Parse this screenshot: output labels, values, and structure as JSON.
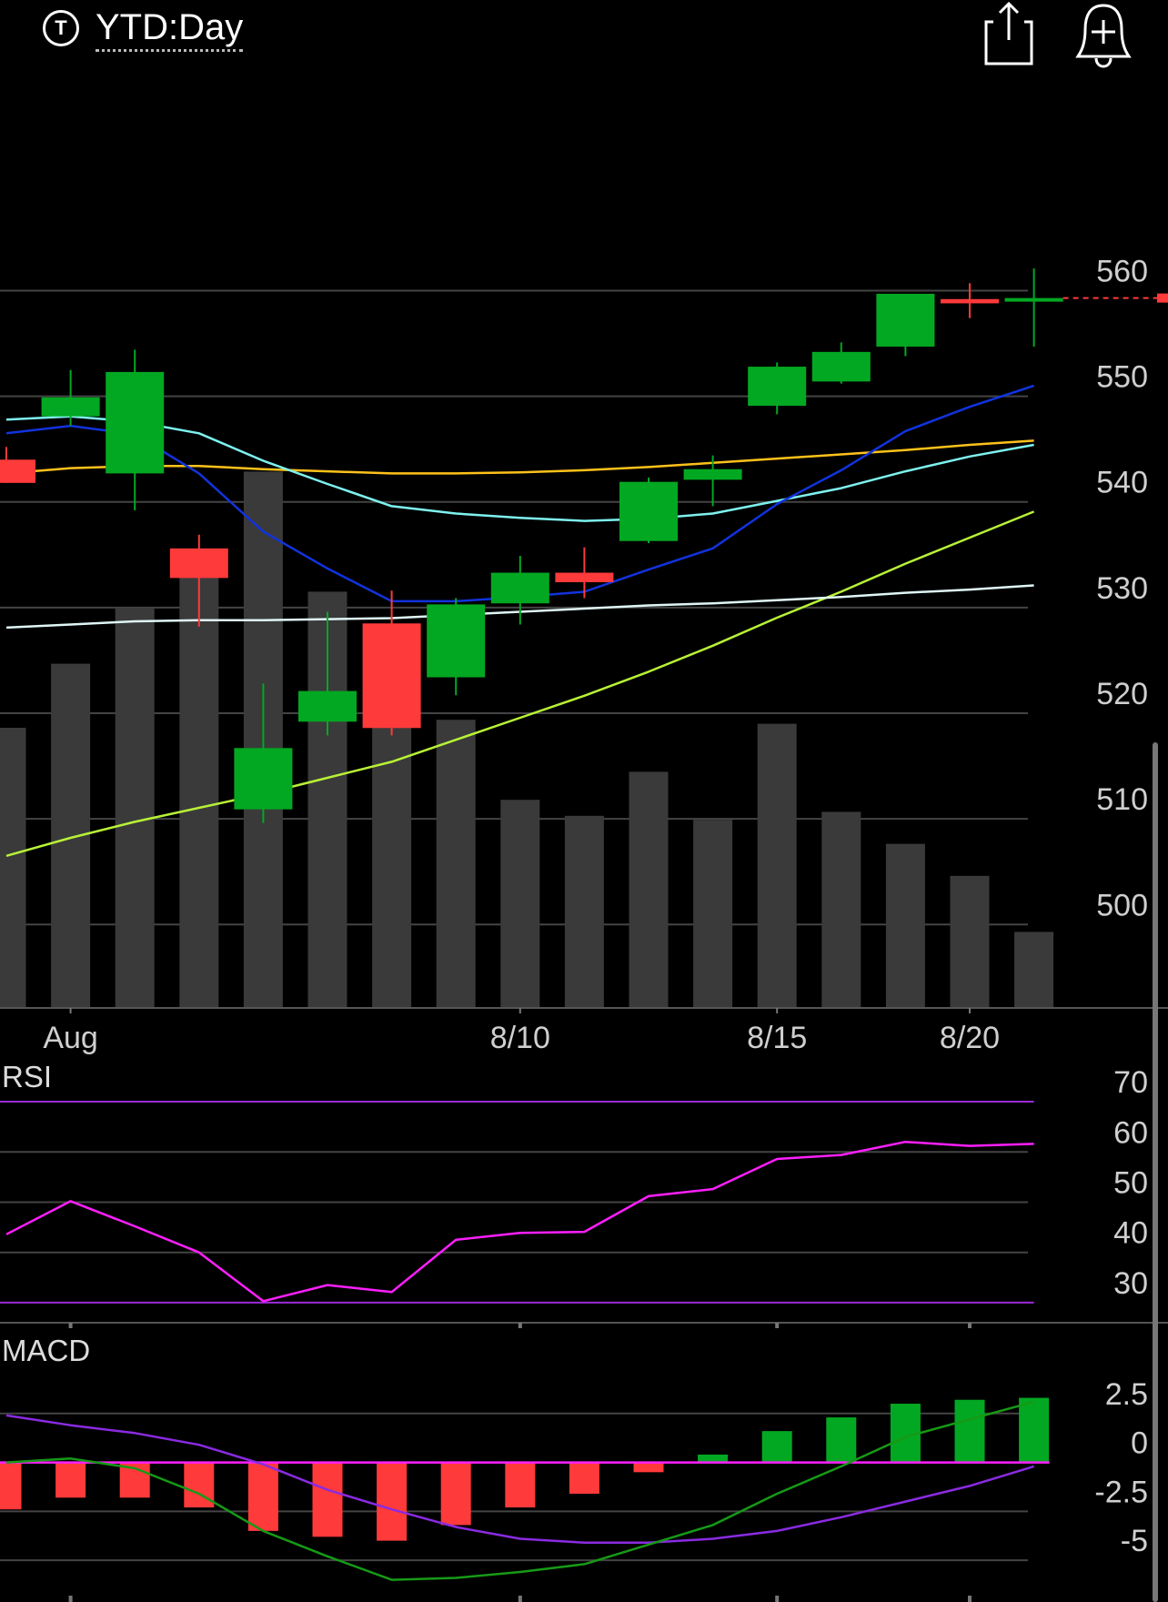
{
  "header": {
    "ticker_icon_letter": "T",
    "range_label": "YTD:Day"
  },
  "icons": {
    "share": "share-icon",
    "alert": "add-alert-bell-icon",
    "ticker": "ticker-type-icon"
  },
  "colors": {
    "up": "#03a822",
    "down": "#ff3a3a",
    "volume": "#3a3a3a",
    "ma_short": "#1133dd",
    "ma_mid": "#7ef2ef",
    "ma_long": "#ffc21a",
    "ma_longest": "#dff6f5",
    "volume_ma": "#b8f236",
    "rsi": "#ff1fff",
    "rsi_bands": "#9b2bd6",
    "macd_line": "#169a16",
    "macd_signal": "#8a2be2",
    "macd_zero": "#ff1fff",
    "grid": "#444444"
  },
  "chart_data": [
    {
      "type": "candlestick",
      "title": "",
      "x_ticks": [
        {
          "label": "Aug",
          "index": 1
        },
        {
          "label": "8/10",
          "index": 8
        },
        {
          "label": "8/15",
          "index": 12
        },
        {
          "label": "8/20",
          "index": 15
        }
      ],
      "y_ticks": [
        560,
        550,
        540,
        530,
        520,
        510,
        500
      ],
      "ylim": [
        492.1,
        578.9
      ],
      "candles": [
        {
          "open": 544.0,
          "close": 541.8,
          "high": 545.2,
          "low": 541.8
        },
        {
          "open": 548.1,
          "close": 549.9,
          "high": 552.5,
          "low": 547.2
        },
        {
          "open": 542.7,
          "close": 552.3,
          "high": 554.4,
          "low": 539.2
        },
        {
          "open": 535.6,
          "close": 532.8,
          "high": 536.9,
          "low": 528.2
        },
        {
          "open": 510.9,
          "close": 516.7,
          "high": 522.8,
          "low": 509.6
        },
        {
          "open": 519.2,
          "close": 522.1,
          "high": 529.6,
          "low": 517.9
        },
        {
          "open": 528.5,
          "close": 518.6,
          "high": 531.6,
          "low": 517.9
        },
        {
          "open": 523.4,
          "close": 530.3,
          "high": 530.9,
          "low": 521.7
        },
        {
          "open": 530.4,
          "close": 533.3,
          "high": 534.9,
          "low": 528.4
        },
        {
          "open": 533.3,
          "close": 532.4,
          "high": 535.7,
          "low": 530.9
        },
        {
          "open": 536.3,
          "close": 541.9,
          "high": 542.3,
          "low": 536.1
        },
        {
          "open": 542.1,
          "close": 543.1,
          "high": 544.4,
          "low": 539.6
        },
        {
          "open": 549.1,
          "close": 552.8,
          "high": 553.2,
          "low": 548.3
        },
        {
          "open": 551.4,
          "close": 554.2,
          "high": 555.1,
          "low": 551.2
        },
        {
          "open": 554.7,
          "close": 559.7,
          "high": 559.7,
          "low": 553.8
        },
        {
          "open": 559.2,
          "close": 558.8,
          "high": 560.7,
          "low": 557.4
        },
        {
          "open": 559.3,
          "close": 559.3,
          "high": 562.1,
          "low": 554.7
        }
      ],
      "last_price": 559.3,
      "volume": [
        0.7,
        0.86,
        1.0,
        1.09,
        1.34,
        1.04,
        0.87,
        0.72,
        0.52,
        0.48,
        0.59,
        0.47,
        0.71,
        0.49,
        0.41,
        0.33,
        0.19
      ],
      "volume_ma": [
        0.38,
        0.425,
        0.465,
        0.5,
        0.535,
        0.575,
        0.615,
        0.67,
        0.725,
        0.78,
        0.84,
        0.905,
        0.975,
        1.04,
        1.11,
        1.175,
        1.24
      ],
      "ma_short": [
        546.5,
        547.2,
        546.4,
        542.7,
        537.2,
        533.7,
        530.6,
        530.6,
        531.0,
        531.5,
        533.6,
        535.6,
        539.8,
        543.0,
        546.7,
        549.0,
        551.0
      ],
      "ma_mid": [
        547.8,
        548.1,
        547.6,
        546.5,
        543.9,
        541.7,
        539.6,
        538.9,
        538.5,
        538.2,
        538.4,
        538.9,
        540.1,
        541.3,
        542.9,
        544.3,
        545.4
      ],
      "ma_long": [
        542.7,
        543.2,
        543.4,
        543.4,
        543.1,
        542.9,
        542.7,
        542.7,
        542.8,
        543.0,
        543.3,
        543.7,
        544.1,
        544.5,
        544.9,
        545.4,
        545.8
      ],
      "ma_longest": [
        528.1,
        528.4,
        528.7,
        528.8,
        528.8,
        528.9,
        529.0,
        529.3,
        529.6,
        529.9,
        530.2,
        530.4,
        530.7,
        531.0,
        531.4,
        531.7,
        532.1
      ]
    },
    {
      "type": "line",
      "title": "RSI",
      "y_ticks": [
        70,
        60,
        50,
        40,
        30
      ],
      "ylim": [
        26,
        72
      ],
      "bands": [
        70,
        30
      ],
      "values": [
        43.6,
        50.2,
        45.2,
        40.0,
        30.3,
        33.5,
        32.1,
        42.5,
        43.9,
        44.1,
        51.2,
        52.6,
        58.6,
        59.4,
        62.0,
        61.2,
        61.6
      ]
    },
    {
      "type": "bar",
      "title": "MACD",
      "y_ticks": [
        2.5,
        0,
        -2.5,
        -5
      ],
      "y_tick_labels": [
        "2.5",
        "0",
        "-2.5",
        "-5"
      ],
      "ylim": [
        -6.9,
        5.0
      ],
      "histogram": [
        -2.4,
        -1.8,
        -1.8,
        -2.3,
        -3.5,
        -3.8,
        -4.0,
        -3.2,
        -2.3,
        -1.6,
        -0.5,
        0.4,
        1.6,
        2.3,
        3.0,
        3.2,
        3.3
      ],
      "macd": [
        0.0,
        0.2,
        -0.3,
        -1.6,
        -3.5,
        -4.8,
        -6.0,
        -5.9,
        -5.6,
        -5.2,
        -4.2,
        -3.2,
        -1.6,
        -0.2,
        1.3,
        2.2,
        3.1
      ],
      "signal": [
        2.4,
        1.9,
        1.5,
        0.9,
        -0.1,
        -1.4,
        -2.4,
        -3.3,
        -3.9,
        -4.1,
        -4.1,
        -3.9,
        -3.5,
        -2.8,
        -2.0,
        -1.2,
        -0.2
      ]
    }
  ]
}
